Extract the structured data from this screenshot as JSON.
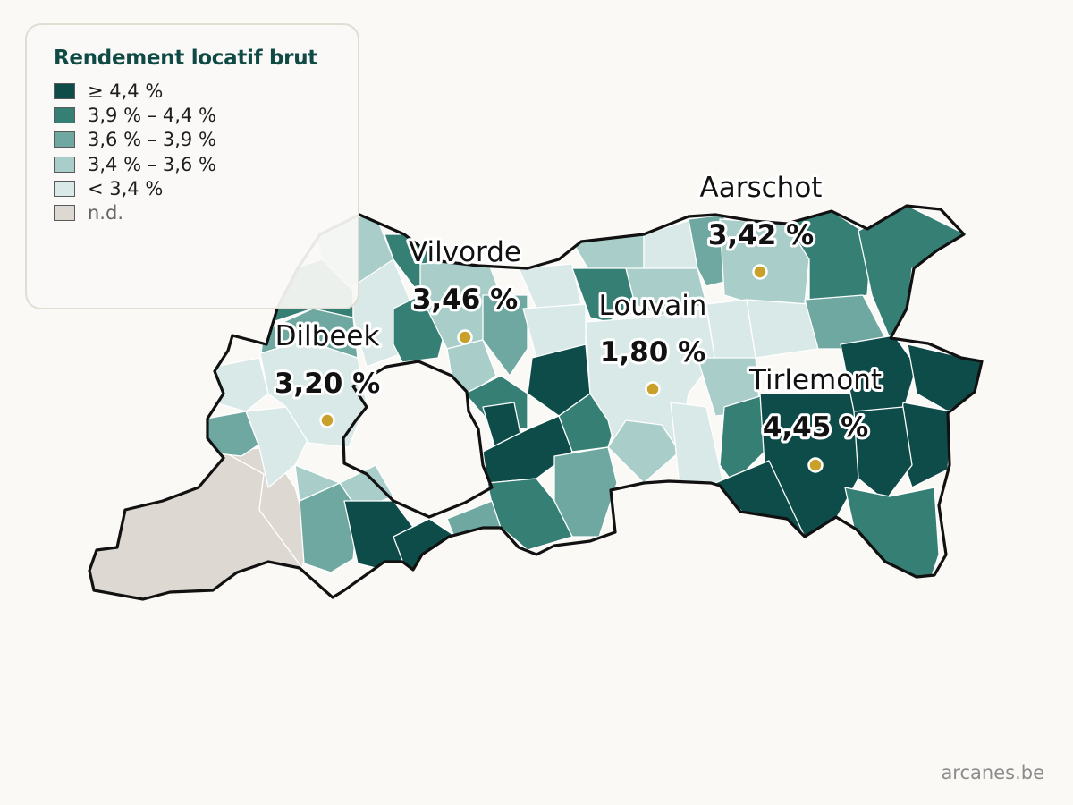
{
  "legend": {
    "title": "Rendement locatif brut",
    "classes": [
      {
        "label": "≥ 4,4 %",
        "color": "#0e4c4a"
      },
      {
        "label": "3,9 % – 4,4 %",
        "color": "#357f74"
      },
      {
        "label": "3,6 % – 3,9 %",
        "color": "#6fa8a0"
      },
      {
        "label": "3,4 % – 3,6 %",
        "color": "#a9cec9"
      },
      {
        "label": "< 3,4 %",
        "color": "#d8e9e7"
      },
      {
        "label": "n.d.",
        "color": "#ddd8d1"
      }
    ]
  },
  "cities": [
    {
      "name": "Aarschot",
      "value": "3,42 %"
    },
    {
      "name": "Vilvorde",
      "value": "3,46 %"
    },
    {
      "name": "Louvain",
      "value": "1,80 %"
    },
    {
      "name": "Dilbeek",
      "value": "3,20 %"
    },
    {
      "name": "Tirlemont",
      "value": "4,45 %"
    }
  ],
  "colors": {
    "marker": "#c9a02a",
    "border": "#111111"
  },
  "footer": "arcanes.be"
}
